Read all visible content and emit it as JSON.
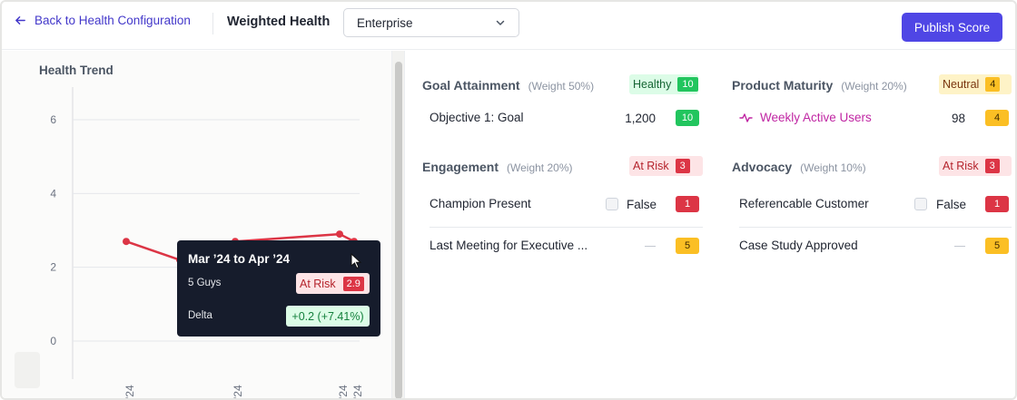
{
  "header": {
    "back_label": "Back to Health Configuration",
    "title": "Weighted Health",
    "select_value": "Enterprise",
    "publish_label": "Publish Score"
  },
  "chart": {
    "title": "Health Trend"
  },
  "chart_data": {
    "type": "line",
    "title": "Health Trend",
    "xlabel": "",
    "ylabel": "",
    "ylim": [
      -1,
      7
    ],
    "yticks": [
      "6",
      "4",
      "2",
      "0"
    ],
    "x_tick_labels": [
      "'24",
      "'24",
      "'24",
      "'24"
    ],
    "series": [
      {
        "color": "#dc3545",
        "values": [
          2.7,
          2.2,
          2.7,
          2.9,
          2.7
        ]
      }
    ]
  },
  "tooltip": {
    "title": "Mar ’24 to Apr ’24",
    "row1_label": "5 Guys",
    "row1_status": "At Risk",
    "row1_value": "2.9",
    "row2_label": "Delta",
    "row2_value": "+0.2 (+7.41%)"
  },
  "sections": {
    "goal": {
      "name": "Goal Attainment",
      "weight": "(Weight 50%)",
      "status": "Healthy",
      "score": "10",
      "rows": [
        {
          "label": "Objective 1: Goal",
          "value": "1,200",
          "score": "10"
        }
      ]
    },
    "product": {
      "name": "Product Maturity",
      "weight": "(Weight 20%)",
      "status": "Neutral",
      "score": "4",
      "rows": [
        {
          "label": "Weekly Active Users",
          "value": "98",
          "score": "4"
        }
      ]
    },
    "engagement": {
      "name": "Engagement",
      "weight": "(Weight 20%)",
      "status": "At Risk",
      "score": "3",
      "rows": [
        {
          "label": "Champion Present",
          "value": "False",
          "score": "1"
        },
        {
          "label": "Last Meeting for Executive ...",
          "value": "—",
          "score": "5"
        }
      ]
    },
    "advocacy": {
      "name": "Advocacy",
      "weight": "(Weight 10%)",
      "status": "At Risk",
      "score": "3",
      "rows": [
        {
          "label": "Referencable Customer",
          "value": "False",
          "score": "1"
        },
        {
          "label": "Case Study Approved",
          "value": "—",
          "score": "5"
        }
      ]
    }
  },
  "colors": {
    "accent": "#4f46e5",
    "healthy": "#22c55e",
    "neutral": "#fbbf24",
    "at_risk": "#dc3545",
    "metric_link": "#c026a3"
  }
}
